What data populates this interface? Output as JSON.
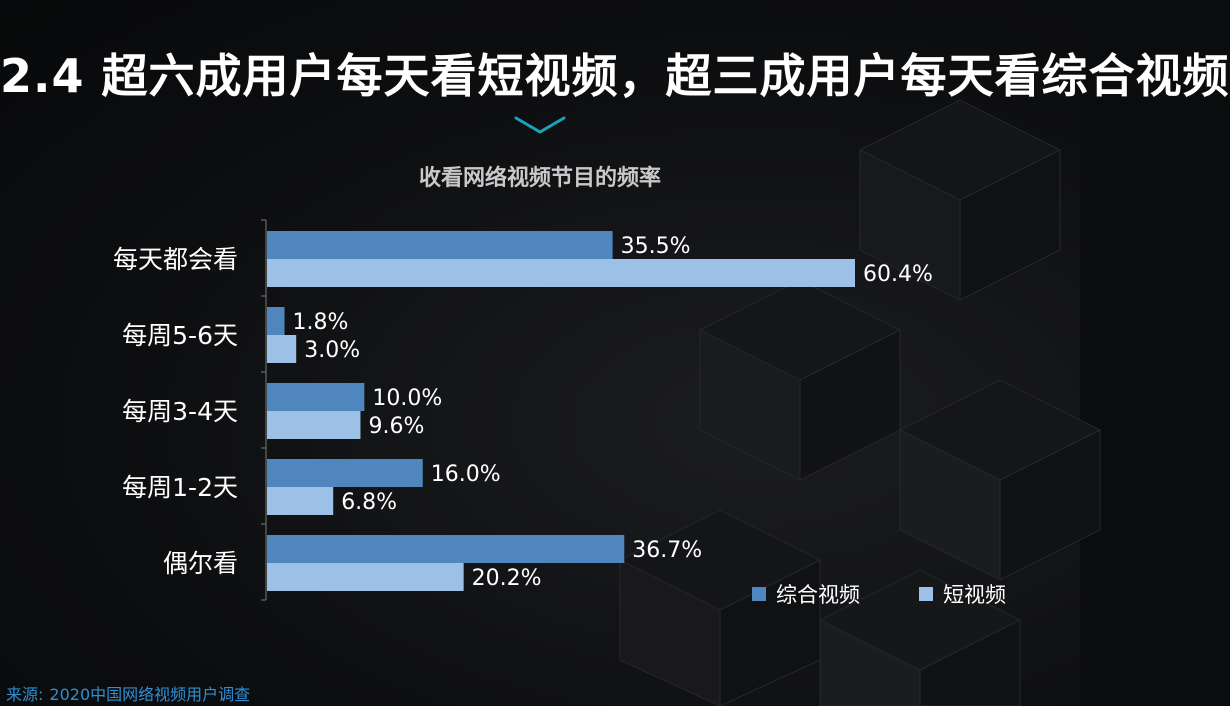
{
  "headline": "2.4 超六成用户每天看短视频，超三成用户每天看综合视频",
  "source": {
    "label": "来源:",
    "text": "2020中国网络视频用户调查"
  },
  "colors": {
    "series1": "#4f86bd",
    "series2": "#9dc0e6",
    "label_text": "#ffffff",
    "accent": "#1aa3b8"
  },
  "chart_data": {
    "type": "bar",
    "orientation": "horizontal",
    "title": "收看网络视频节目的频率",
    "categories": [
      "每天都会看",
      "每周5-6天",
      "每周3-4天",
      "每周1-2天",
      "偶尔看"
    ],
    "series": [
      {
        "name": "综合视频",
        "values": [
          35.5,
          1.8,
          10.0,
          16.0,
          36.7
        ],
        "labels": [
          "35.5%",
          "1.8%",
          "10.0%",
          "16.0%",
          "36.7%"
        ]
      },
      {
        "name": "短视频",
        "values": [
          60.4,
          3.0,
          9.6,
          6.8,
          20.2
        ],
        "labels": [
          "60.4%",
          "3.0%",
          "9.6%",
          "6.8%",
          "20.2%"
        ]
      }
    ],
    "xlim": [
      0,
      70
    ],
    "grid": false,
    "legend": "bottom-right"
  }
}
